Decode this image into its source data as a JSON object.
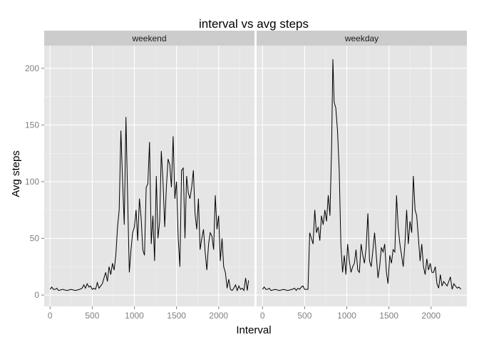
{
  "chart_data": {
    "type": "line",
    "title": "interval vs avg steps",
    "xlabel": "Interval",
    "ylabel": "Avg steps",
    "xlim": [
      -70,
      2425
    ],
    "ylim": [
      -10,
      220
    ],
    "x_ticks": [
      0,
      500,
      1000,
      1500,
      2000
    ],
    "y_ticks": [
      0,
      50,
      100,
      150,
      200
    ],
    "grid": true,
    "colors": {
      "panel_bg": "#e5e5e5",
      "grid_major": "#ffffff",
      "strip_bg": "#cccccc",
      "line": "#000000"
    },
    "panels": [
      {
        "label": "weekend",
        "series": {
          "x": [
            0,
            20,
            40,
            60,
            80,
            100,
            150,
            200,
            250,
            300,
            350,
            380,
            400,
            420,
            440,
            460,
            480,
            500,
            520,
            540,
            560,
            580,
            600,
            620,
            640,
            660,
            680,
            700,
            720,
            740,
            760,
            780,
            800,
            820,
            840,
            860,
            880,
            900,
            920,
            940,
            960,
            980,
            1000,
            1020,
            1040,
            1060,
            1080,
            1100,
            1120,
            1140,
            1160,
            1180,
            1200,
            1220,
            1240,
            1260,
            1280,
            1300,
            1320,
            1340,
            1360,
            1380,
            1400,
            1420,
            1440,
            1460,
            1480,
            1500,
            1520,
            1540,
            1560,
            1580,
            1600,
            1620,
            1640,
            1660,
            1680,
            1700,
            1720,
            1740,
            1760,
            1780,
            1800,
            1820,
            1840,
            1860,
            1880,
            1900,
            1920,
            1940,
            1960,
            1980,
            2000,
            2020,
            2040,
            2060,
            2080,
            2100,
            2120,
            2140,
            2160,
            2180,
            2200,
            2220,
            2240,
            2260,
            2280,
            2300,
            2320,
            2340,
            2355
          ],
          "y": [
            5,
            7,
            5,
            5,
            6,
            4,
            5,
            4,
            5,
            4,
            5,
            6,
            9,
            6,
            10,
            7,
            8,
            5,
            6,
            5,
            11,
            6,
            8,
            10,
            15,
            20,
            12,
            25,
            18,
            28,
            22,
            35,
            60,
            75,
            145,
            100,
            62,
            157,
            85,
            20,
            40,
            55,
            60,
            75,
            48,
            85,
            68,
            40,
            35,
            95,
            98,
            135,
            45,
            70,
            30,
            105,
            50,
            65,
            127,
            100,
            60,
            95,
            120,
            115,
            95,
            140,
            85,
            100,
            50,
            25,
            110,
            112,
            50,
            105,
            90,
            85,
            95,
            110,
            72,
            58,
            85,
            40,
            50,
            58,
            38,
            22,
            45,
            55,
            52,
            40,
            88,
            58,
            70,
            30,
            50,
            25,
            20,
            6,
            14,
            5,
            4,
            6,
            9,
            4,
            8,
            5,
            6,
            4,
            15,
            4,
            13
          ]
        }
      },
      {
        "label": "weekday",
        "series": {
          "x": [
            0,
            20,
            40,
            60,
            80,
            100,
            150,
            200,
            250,
            300,
            350,
            380,
            400,
            420,
            440,
            460,
            480,
            500,
            520,
            540,
            560,
            580,
            600,
            620,
            640,
            660,
            680,
            700,
            720,
            740,
            760,
            780,
            800,
            820,
            835,
            850,
            870,
            890,
            910,
            930,
            950,
            970,
            990,
            1010,
            1030,
            1050,
            1070,
            1090,
            1110,
            1130,
            1150,
            1170,
            1190,
            1210,
            1230,
            1250,
            1270,
            1290,
            1310,
            1330,
            1350,
            1370,
            1390,
            1410,
            1430,
            1450,
            1470,
            1490,
            1510,
            1530,
            1550,
            1570,
            1590,
            1610,
            1630,
            1650,
            1670,
            1690,
            1710,
            1730,
            1750,
            1770,
            1790,
            1810,
            1830,
            1850,
            1870,
            1890,
            1910,
            1930,
            1950,
            1970,
            1990,
            2010,
            2030,
            2050,
            2070,
            2090,
            2110,
            2130,
            2150,
            2170,
            2190,
            2210,
            2230,
            2250,
            2270,
            2290,
            2310,
            2330,
            2355
          ],
          "y": [
            5,
            7,
            5,
            5,
            6,
            4,
            5,
            4,
            5,
            4,
            5,
            6,
            4,
            6,
            5,
            7,
            8,
            5,
            5,
            5,
            55,
            50,
            45,
            75,
            55,
            60,
            48,
            70,
            62,
            75,
            65,
            88,
            70,
            130,
            208,
            170,
            165,
            145,
            110,
            45,
            20,
            35,
            18,
            45,
            30,
            20,
            25,
            28,
            40,
            22,
            20,
            45,
            35,
            28,
            42,
            72,
            30,
            25,
            40,
            55,
            35,
            15,
            25,
            42,
            38,
            45,
            20,
            10,
            35,
            28,
            40,
            38,
            88,
            60,
            45,
            35,
            25,
            45,
            75,
            45,
            65,
            55,
            105,
            75,
            70,
            50,
            30,
            45,
            25,
            18,
            32,
            22,
            28,
            20,
            20,
            25,
            10,
            6,
            18,
            8,
            12,
            10,
            8,
            12,
            16,
            5,
            10,
            8,
            6,
            7,
            5
          ]
        }
      }
    ]
  }
}
